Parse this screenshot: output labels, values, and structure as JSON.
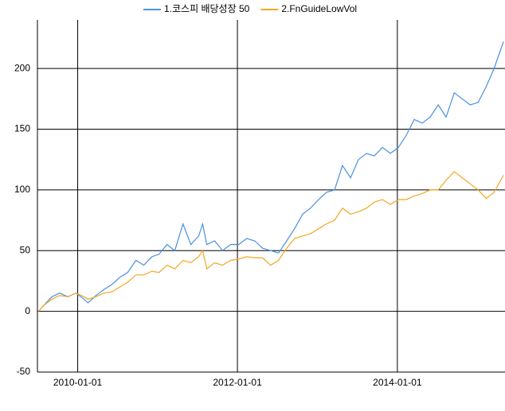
{
  "chart_data": {
    "type": "line",
    "x": [
      "2009-07-06",
      "2009-07-31",
      "2009-09-05",
      "2009-10-11",
      "2009-11-17",
      "2009-12-24",
      "2010-01-30",
      "2010-02-17",
      "2010-03-25",
      "2010-05-01",
      "2010-06-06",
      "2010-07-12",
      "2010-08-18",
      "2010-09-24",
      "2010-10-30",
      "2010-12-06",
      "2011-01-08",
      "2011-02-13",
      "2011-03-21",
      "2011-04-27",
      "2011-06-02",
      "2011-07-08",
      "2011-07-26",
      "2011-08-14",
      "2011-09-19",
      "2011-10-25",
      "2011-12-01",
      "2012-01-07",
      "2012-02-12",
      "2012-03-20",
      "2012-04-25",
      "2012-06-01",
      "2012-07-07",
      "2012-08-13",
      "2012-09-18",
      "2012-10-25",
      "2012-11-30",
      "2013-01-06",
      "2013-02-11",
      "2013-03-20",
      "2013-04-25",
      "2013-06-01",
      "2013-07-07",
      "2013-08-13",
      "2013-09-18",
      "2013-10-25",
      "2013-11-30",
      "2014-01-06",
      "2014-02-11",
      "2014-03-19",
      "2014-04-25",
      "2014-05-31",
      "2014-07-07",
      "2014-08-12",
      "2014-09-18",
      "2014-10-24",
      "2014-11-30",
      "2015-01-05",
      "2015-02-11",
      "2015-03-19",
      "2015-05-01"
    ],
    "series": [
      {
        "name": "1.코스피 배당성장 50",
        "color": "#4a90e2",
        "values": [
          0,
          5,
          12,
          15,
          12,
          15,
          10,
          7,
          13,
          18,
          22,
          28,
          32,
          42,
          38,
          45,
          47,
          55,
          50,
          72,
          55,
          62,
          72,
          55,
          58,
          50,
          55,
          55,
          60,
          58,
          52,
          50,
          48,
          58,
          68,
          80,
          85,
          92,
          98,
          100,
          120,
          110,
          125,
          130,
          128,
          135,
          130,
          135,
          145,
          158,
          155,
          160,
          170,
          160,
          180,
          175,
          170,
          172,
          185,
          200,
          222
        ]
      },
      {
        "name": "2.FnGuideLowVol",
        "color": "#f5a623",
        "values": [
          0,
          5,
          10,
          13,
          12,
          15,
          12,
          10,
          12,
          15,
          16,
          20,
          24,
          30,
          30,
          33,
          32,
          38,
          35,
          42,
          40,
          45,
          50,
          35,
          40,
          38,
          42,
          43,
          45,
          44,
          44,
          38,
          42,
          52,
          60,
          62,
          64,
          68,
          72,
          75,
          85,
          80,
          82,
          85,
          90,
          92,
          88,
          92,
          92,
          95,
          97,
          100,
          100,
          108,
          115,
          110,
          105,
          100,
          93,
          98,
          112
        ]
      }
    ],
    "xlim": [
      "2009-07-01",
      "2015-05-08"
    ],
    "xticks": [
      "2010-01-01",
      "2012-01-01",
      "2014-01-01"
    ],
    "ylim": [
      -50,
      240
    ],
    "yticks": [
      -50,
      0,
      50,
      100,
      150,
      200
    ],
    "grid": true,
    "legend": "top"
  }
}
